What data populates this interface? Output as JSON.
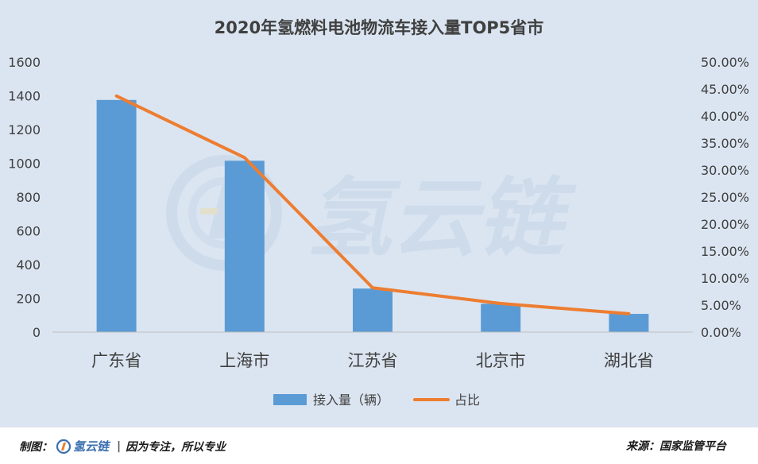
{
  "chart_data": {
    "type": "bar+line",
    "title": "2020年氢燃料电池物流车接入量TOP5省市",
    "categories": [
      "广东省",
      "上海市",
      "江苏省",
      "北京市",
      "湖北省"
    ],
    "series": [
      {
        "name": "接入量（辆）",
        "type": "bar",
        "axis": "left",
        "values": [
          1375,
          1015,
          258,
          168,
          108
        ],
        "color": "#5b9bd5"
      },
      {
        "name": "占比",
        "type": "line",
        "axis": "right",
        "values": [
          43.7,
          32.3,
          8.2,
          5.3,
          3.4
        ],
        "color": "#ed7d31"
      }
    ],
    "y_left": {
      "min": 0,
      "max": 1600,
      "ticks": [
        "0",
        "200",
        "400",
        "600",
        "800",
        "1000",
        "1200",
        "1400",
        "1600"
      ]
    },
    "y_right": {
      "min": 0,
      "max": 50,
      "ticks": [
        "0.00%",
        "5.00%",
        "10.00%",
        "15.00%",
        "20.00%",
        "25.00%",
        "30.00%",
        "35.00%",
        "40.00%",
        "45.00%",
        "50.00%"
      ]
    },
    "grid": false,
    "legend": "bottom",
    "watermark": "氢云链"
  },
  "footer": {
    "left_label": "制图：",
    "brand": "氢云链",
    "slogan": "因为专注，所以专业",
    "right": "来源：国家监管平台"
  }
}
